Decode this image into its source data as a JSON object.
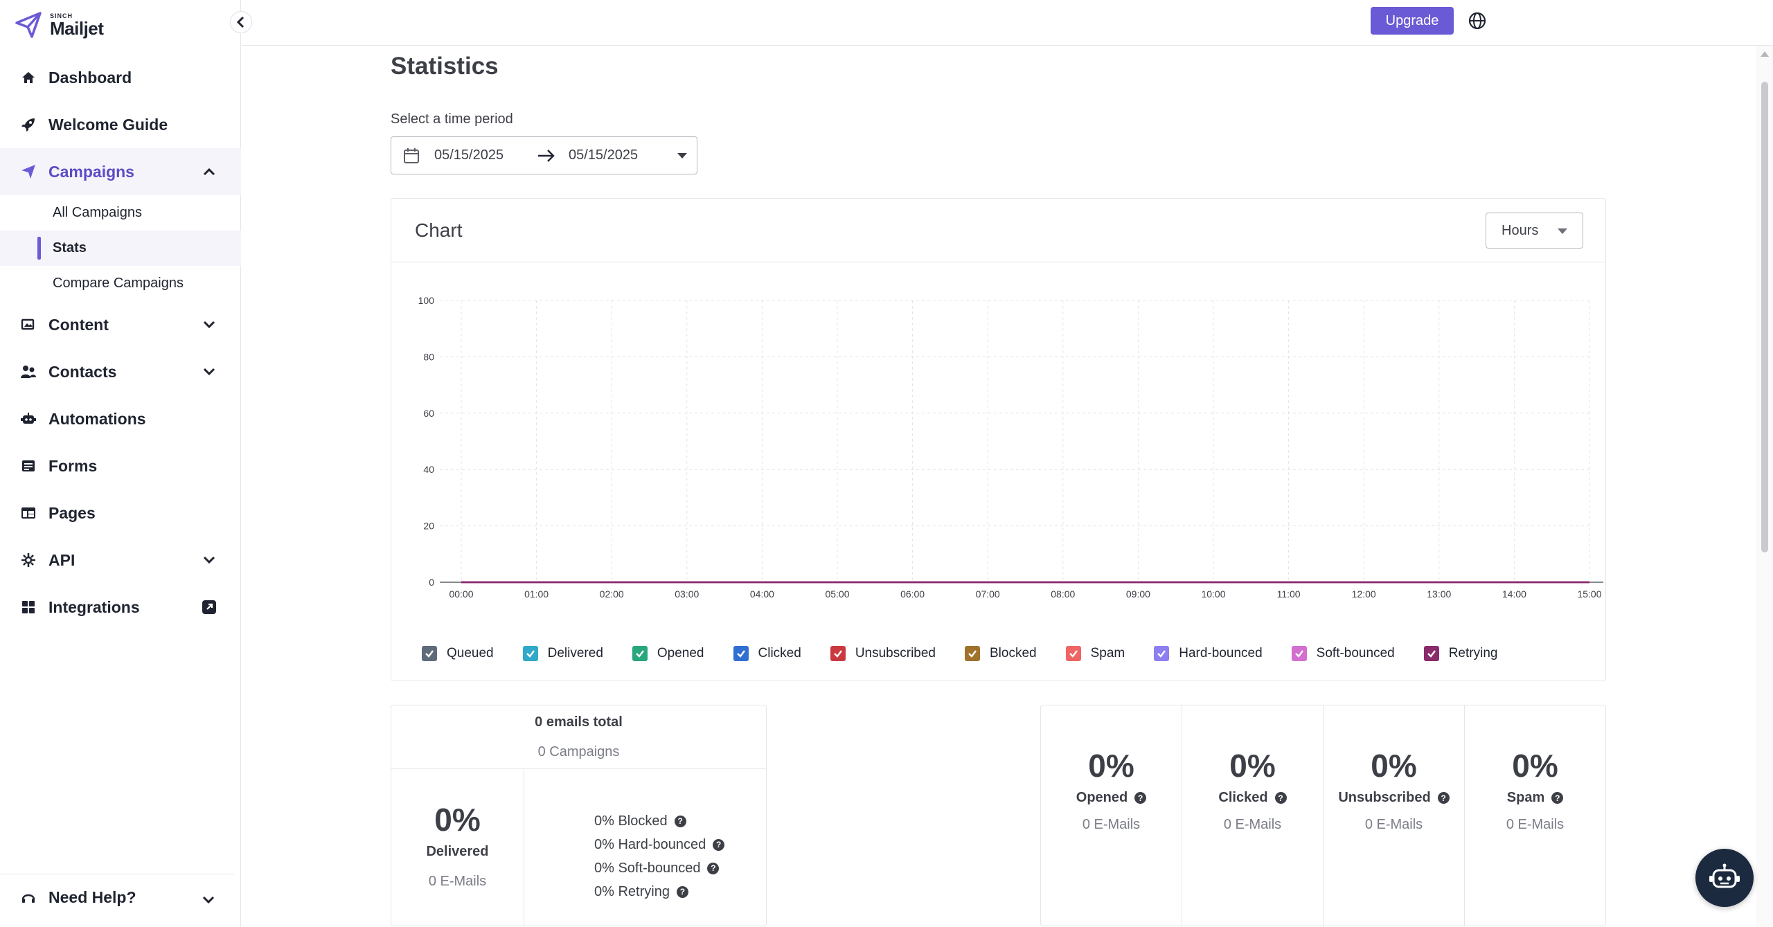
{
  "brand": {
    "small": "SINCH",
    "name": "Mailjet"
  },
  "colors": {
    "accent": "#6b5ad6",
    "accent_bg": "#f5f4fb"
  },
  "sidebar": {
    "items": [
      {
        "label": "Dashboard",
        "icon": "home-icon"
      },
      {
        "label": "Welcome Guide",
        "icon": "rocket-icon"
      },
      {
        "label": "Campaigns",
        "icon": "paper-plane-icon",
        "expanded": true
      },
      {
        "label": "Content",
        "icon": "image-icon"
      },
      {
        "label": "Contacts",
        "icon": "users-icon"
      },
      {
        "label": "Automations",
        "icon": "robot-icon"
      },
      {
        "label": "Forms",
        "icon": "form-icon"
      },
      {
        "label": "Pages",
        "icon": "layout-icon"
      },
      {
        "label": "API",
        "icon": "api-icon"
      },
      {
        "label": "Integrations",
        "icon": "grid-icon"
      }
    ],
    "campaign_sub": [
      "All Campaigns",
      "Stats",
      "Compare Campaigns"
    ],
    "help": "Need Help?"
  },
  "topbar": {
    "upgrade": "Upgrade"
  },
  "main": {
    "title": "Statistics",
    "period_label": "Select a time period",
    "date_from": "05/15/2025",
    "date_to": "05/15/2025"
  },
  "chart_card": {
    "title": "Chart",
    "granularity": "Hours"
  },
  "chart_data": {
    "type": "line",
    "x": [
      "00:00",
      "01:00",
      "02:00",
      "03:00",
      "04:00",
      "05:00",
      "06:00",
      "07:00",
      "08:00",
      "09:00",
      "10:00",
      "11:00",
      "12:00",
      "13:00",
      "14:00",
      "15:00"
    ],
    "ylim": [
      0,
      100
    ],
    "yticks": [
      "0",
      "20",
      "40",
      "60",
      "80",
      "100"
    ],
    "grid": true,
    "legend_position": "bottom",
    "series": [
      {
        "name": "Queued",
        "color": "#5f6b7a",
        "values": [
          0,
          0,
          0,
          0,
          0,
          0,
          0,
          0,
          0,
          0,
          0,
          0,
          0,
          0,
          0,
          0
        ]
      },
      {
        "name": "Delivered",
        "color": "#2fa8c9",
        "values": [
          0,
          0,
          0,
          0,
          0,
          0,
          0,
          0,
          0,
          0,
          0,
          0,
          0,
          0,
          0,
          0
        ]
      },
      {
        "name": "Opened",
        "color": "#27a77a",
        "values": [
          0,
          0,
          0,
          0,
          0,
          0,
          0,
          0,
          0,
          0,
          0,
          0,
          0,
          0,
          0,
          0
        ]
      },
      {
        "name": "Clicked",
        "color": "#2f6fd1",
        "values": [
          0,
          0,
          0,
          0,
          0,
          0,
          0,
          0,
          0,
          0,
          0,
          0,
          0,
          0,
          0,
          0
        ]
      },
      {
        "name": "Unsubscribed",
        "color": "#c9393f",
        "values": [
          0,
          0,
          0,
          0,
          0,
          0,
          0,
          0,
          0,
          0,
          0,
          0,
          0,
          0,
          0,
          0
        ]
      },
      {
        "name": "Blocked",
        "color": "#a0722c",
        "values": [
          0,
          0,
          0,
          0,
          0,
          0,
          0,
          0,
          0,
          0,
          0,
          0,
          0,
          0,
          0,
          0
        ]
      },
      {
        "name": "Spam",
        "color": "#ef6464",
        "values": [
          0,
          0,
          0,
          0,
          0,
          0,
          0,
          0,
          0,
          0,
          0,
          0,
          0,
          0,
          0,
          0
        ]
      },
      {
        "name": "Hard-bounced",
        "color": "#8d7ff0",
        "values": [
          0,
          0,
          0,
          0,
          0,
          0,
          0,
          0,
          0,
          0,
          0,
          0,
          0,
          0,
          0,
          0
        ]
      },
      {
        "name": "Soft-bounced",
        "color": "#d46ed0",
        "values": [
          0,
          0,
          0,
          0,
          0,
          0,
          0,
          0,
          0,
          0,
          0,
          0,
          0,
          0,
          0,
          0
        ]
      },
      {
        "name": "Retrying",
        "color": "#8a2b6b",
        "values": [
          0,
          0,
          0,
          0,
          0,
          0,
          0,
          0,
          0,
          0,
          0,
          0,
          0,
          0,
          0,
          0
        ]
      }
    ]
  },
  "summary": {
    "total": "0 emails total",
    "campaigns": "0 Campaigns",
    "delivered_pct": "0%",
    "delivered_label": "Delivered",
    "delivered_count": "0 E-Mails",
    "rates": [
      "0% Blocked",
      "0% Hard-bounced",
      "0% Soft-bounced",
      "0% Retrying"
    ]
  },
  "metrics": [
    {
      "pct": "0%",
      "label": "Opened",
      "count": "0 E-Mails"
    },
    {
      "pct": "0%",
      "label": "Clicked",
      "count": "0 E-Mails"
    },
    {
      "pct": "0%",
      "label": "Unsubscribed",
      "count": "0 E-Mails"
    },
    {
      "pct": "0%",
      "label": "Spam",
      "count": "0 E-Mails"
    }
  ]
}
